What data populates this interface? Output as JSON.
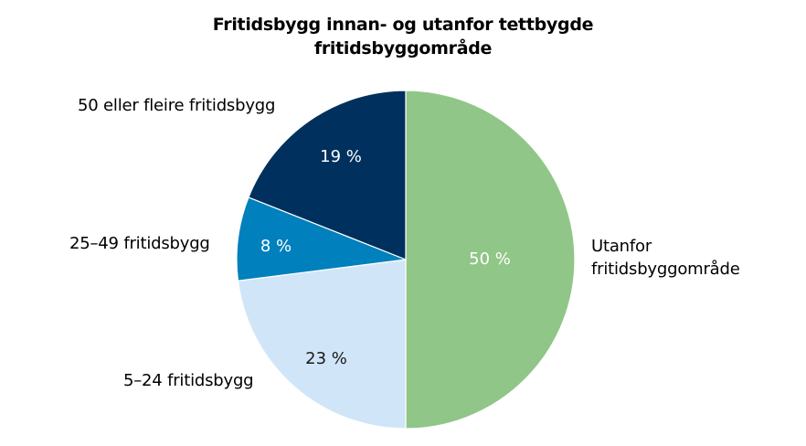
{
  "chart_data": {
    "type": "pie",
    "title": "Fritidsbygg innan- og utanfor tettbygde fritidsbyggområde",
    "title_lines": [
      "Fritidsbygg innan- og utanfor tettbygde",
      "fritidsbyggområde"
    ],
    "slices": [
      {
        "label": "Utanfor fritidsbyggområde",
        "label_lines": [
          "Utanfor",
          "fritidsbyggområde"
        ],
        "value": 50,
        "value_label": "50 %",
        "color": "#90c687",
        "text_color": "#ffffff"
      },
      {
        "label": "5–24 fritidsbygg",
        "value": 23,
        "value_label": "23 %",
        "color": "#d0e6f8",
        "text_color": "#1a1a1a"
      },
      {
        "label": "25–49 fritidsbygg",
        "value": 8,
        "value_label": "8 %",
        "color": "#0080bc",
        "text_color": "#ffffff"
      },
      {
        "label": "50 eller fleire fritidsbygg",
        "value": 19,
        "value_label": "19 %",
        "color": "#00315e",
        "text_color": "#ffffff"
      }
    ],
    "categories": [
      "Utanfor fritidsbyggområde",
      "5–24 fritidsbygg",
      "25–49 fritidsbygg",
      "50 eller fleire fritidsbygg"
    ],
    "values": [
      50,
      23,
      8,
      19
    ],
    "unit": "%",
    "start_angle": "12 o'clock, clockwise",
    "legend": "none (direct labels)"
  }
}
